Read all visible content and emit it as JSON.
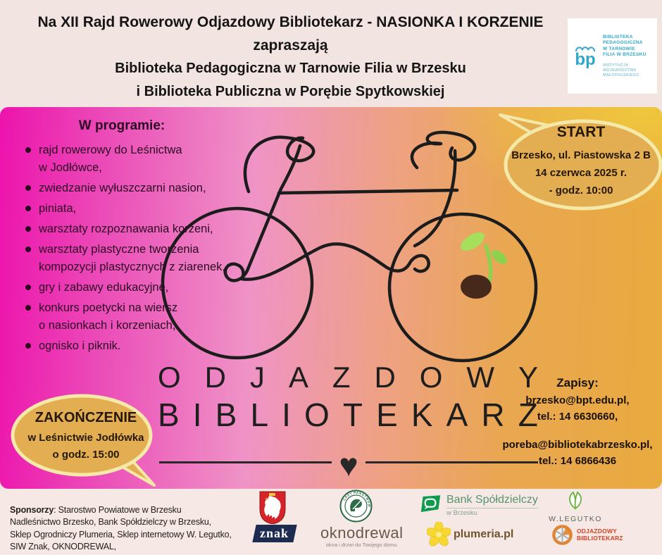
{
  "header": {
    "line1": "Na XII Rajd Rowerowy Odjazdowy Bibliotekarz - NASIONKA I KORZENIE",
    "line2": "zapraszają",
    "line3": "Biblioteka Pedagogiczna w Tarnowie Filia w Brzesku",
    "line4": "i Biblioteka Publiczna w Porębie Spytkowskiej",
    "logo": {
      "glyph": "bp",
      "name_lines": [
        "BIBLIOTEKA",
        "PEDAGOGICZNA",
        "W TARNOWIE",
        "FILIA W BRZESKU"
      ],
      "sub_lines": [
        "INSTYTUCJA",
        "WOJEWÓDZTWA",
        "MAŁOPOLSKIEGO"
      ]
    }
  },
  "program": {
    "title": "W programie:",
    "items": [
      "rajd rowerowy do Leśnictwa\nw Jodłówce,",
      "zwiedzanie wyłuszczarni nasion,",
      "piniata,",
      "warsztaty rozpoznawania korzeni,",
      "warsztaty plastyczne tworzenia\nkompozycji plastycznych z ziarenek,",
      "gry i zabawy edukacyjne,",
      "konkurs poetycki na wiersz\no nasionkach i korzeniach,",
      "ognisko i piknik."
    ]
  },
  "start_bubble": {
    "title": "START",
    "lines": [
      "Brzesko, ul. Piastowska 2 B",
      "14 czerwca 2025 r.",
      "- godz. 10:00"
    ]
  },
  "end_bubble": {
    "title": "ZAKOŃCZENIE",
    "lines": [
      "w Leśnictwie Jodłówka",
      "o godz. 15:00"
    ]
  },
  "wordmark": {
    "line1": "ODJAZDOWY",
    "line2": "BIBLIOTEKARZ",
    "heart": "♥"
  },
  "signup": {
    "label": "Zapisy:",
    "contact1": [
      "brzesko@bpt.edu.pl,",
      "tel.: 14 6630660,"
    ],
    "contact2": [
      "poreba@bibliotekabrzesko.pl,",
      "tel.: 14 6866436"
    ]
  },
  "footer": {
    "sponsors_label": "Sponsorzy",
    "sponsors_text": ": Starostwo Powiatowe w Brzesku\nNadleśnictwo Brzesko,  Bank Spółdzielczy w Brzesku,\nSklep Ogrodniczy Plumeria,  Sklep internetowy W. Legutko,\nSIW Znak, OKNODREWAL,\nCentrum Informacyjne Lasów Państwowych",
    "logos": {
      "lasy_ring_text": "LASY PAŃSTWOWE",
      "bank": {
        "name": "Bank Spółdzielczy",
        "sub": "w Brzesku"
      },
      "legutko": "W.LEGUTKO",
      "znak": "znak",
      "oknodrewal": {
        "name": "oknodrewal",
        "tagline": "okna i drzwi do Twojego domu"
      },
      "plumeria": "plumeria.pl",
      "odjazdowy": {
        "line1": "ODJAZDOWY",
        "line2": "BIBLIOTEKARZ"
      }
    }
  },
  "colors": {
    "gradient_left": "#ed13ad",
    "gradient_mid": "#ef93c6",
    "gradient_right": "#e9aa3e",
    "header_bg": "#f2e4e1",
    "footer_bg": "#f5e8e5",
    "bubble_fill": "#e3ae51",
    "bubble_border": "#f4e9a9",
    "line_art": "#1c1c1c",
    "library_teal": "#2ea7c9",
    "seed_brown": "#47291c",
    "sprout_green": "#8dd14f"
  }
}
